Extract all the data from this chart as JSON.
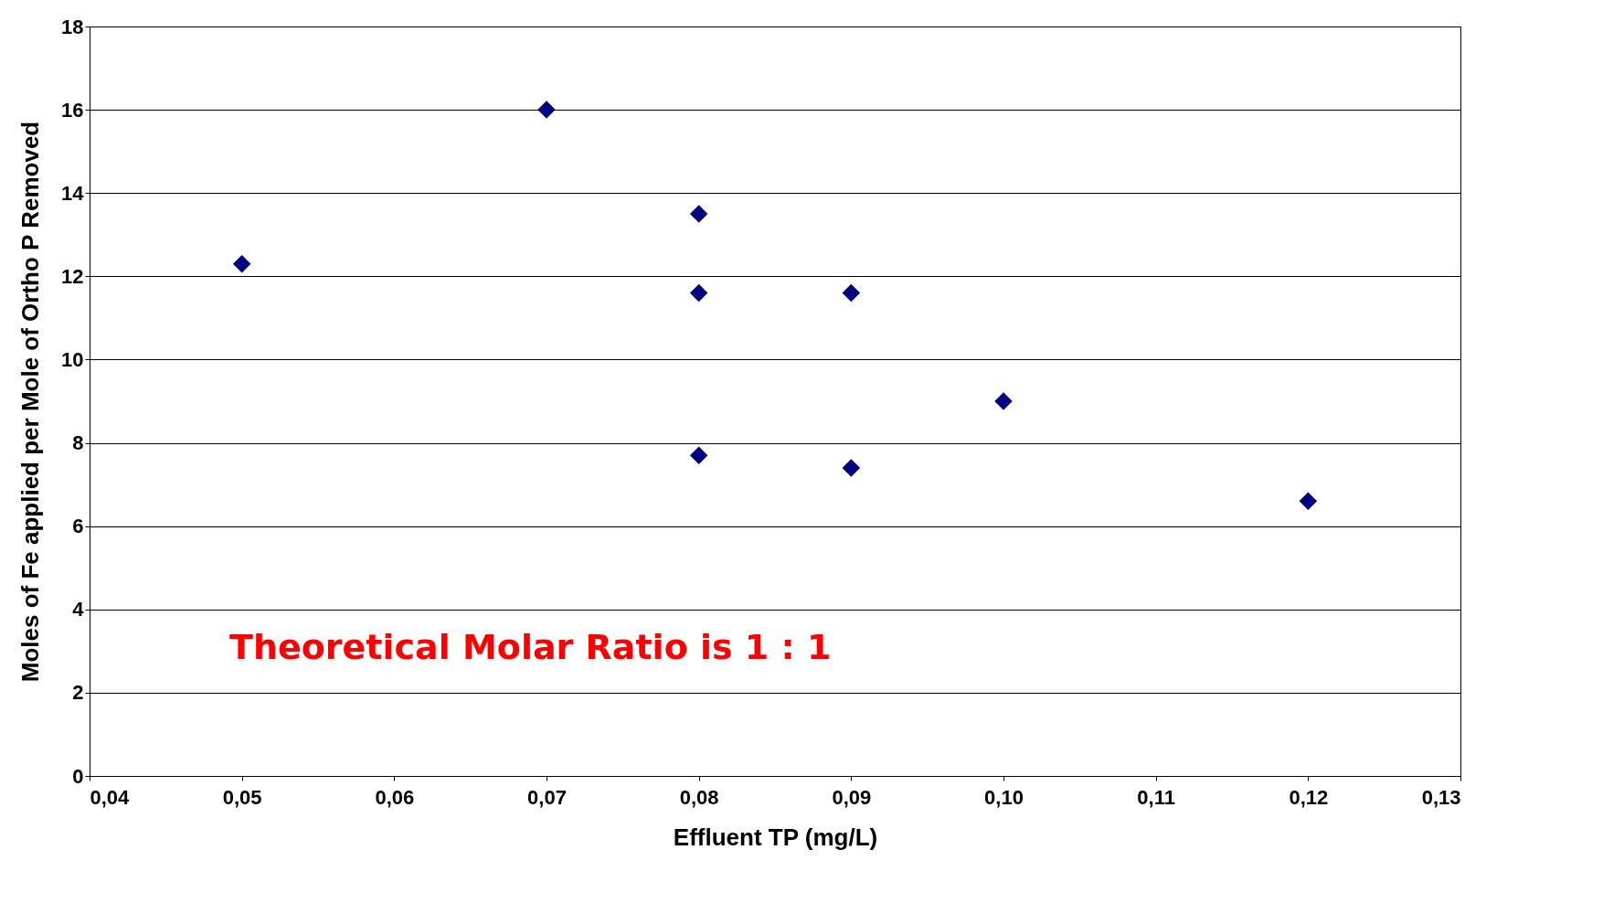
{
  "chart_data": {
    "type": "scatter",
    "xlabel": "Effluent TP (mg/L)",
    "ylabel": "Moles of Fe applied per Mole of Ortho P Removed",
    "series": [
      {
        "color": "#000080",
        "x": [
          0.05,
          0.07,
          0.08,
          0.08,
          0.09,
          0.1,
          0.08,
          0.09,
          0.12
        ],
        "values": [
          12.3,
          16.0,
          13.5,
          11.6,
          11.6,
          9.0,
          7.7,
          7.4,
          6.6
        ]
      }
    ],
    "xlim": [
      0.04,
      0.13
    ],
    "xticks": [
      {
        "value": 0.04,
        "label": "0,04"
      },
      {
        "value": 0.05,
        "label": "0,05"
      },
      {
        "value": 0.06,
        "label": "0,06"
      },
      {
        "value": 0.07,
        "label": "0,07"
      },
      {
        "value": 0.08,
        "label": "0,08"
      },
      {
        "value": 0.09,
        "label": "0,09"
      },
      {
        "value": 0.1,
        "label": "0,10"
      },
      {
        "value": 0.11,
        "label": "0,11"
      },
      {
        "value": 0.12,
        "label": "0,12"
      },
      {
        "value": 0.13,
        "label": "0,13"
      }
    ],
    "ylim": [
      0,
      18
    ],
    "yticks": [
      0,
      2,
      4,
      6,
      8,
      10,
      12,
      14,
      16,
      18
    ],
    "grid": "y",
    "marker": "diamond",
    "annotations": [
      "Theoretical Molar Ratio is 1 : 1"
    ]
  }
}
